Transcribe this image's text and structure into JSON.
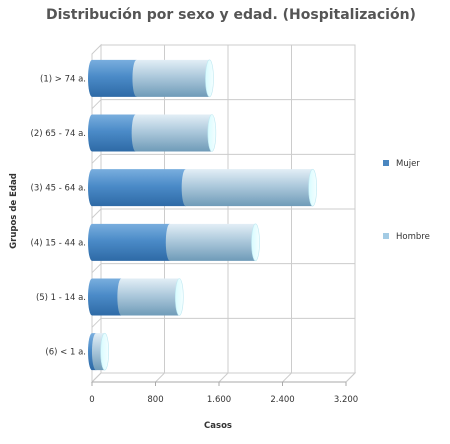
{
  "chart_data": {
    "type": "bar",
    "orientation": "horizontal",
    "stacked": true,
    "style": "3d-cylinder",
    "title": "Distribución por sexo y edad. (Hospitalización)",
    "xlabel": "Casos",
    "ylabel": "Grupos de Edad",
    "xlim": [
      0,
      3200
    ],
    "xticks": [
      "0",
      "800",
      "1.600",
      "2.400",
      "3.200"
    ],
    "xtick_values": [
      0,
      800,
      1600,
      2400,
      3200
    ],
    "grid": true,
    "legend_position": "right",
    "categories": [
      "(1) > 74 a.",
      "(2) 65 - 74 a.",
      "(3) 45 - 64 a.",
      "(4) 15 - 44 a.",
      "(5) 1 - 14 a.",
      "(6) < 1 a."
    ],
    "series": [
      {
        "name": "Mujer",
        "color": "#4a86c0",
        "values": [
          560,
          550,
          1180,
          980,
          370,
          50
        ]
      },
      {
        "name": "Hombre",
        "color": "#a3cbe4",
        "values": [
          920,
          960,
          1600,
          1080,
          730,
          110
        ]
      }
    ]
  }
}
